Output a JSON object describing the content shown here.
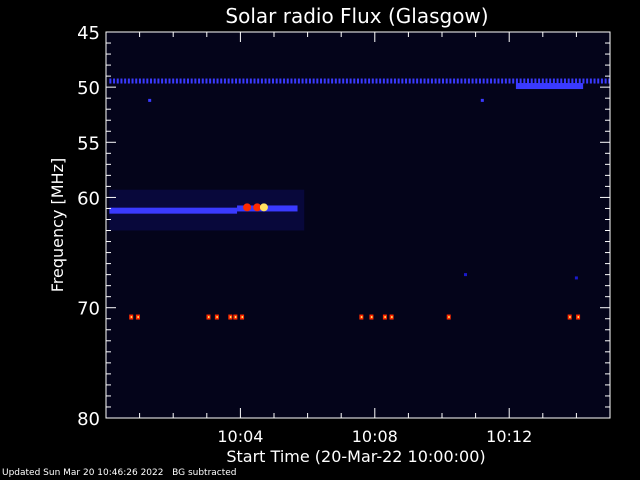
{
  "chart_data": {
    "type": "heatmap",
    "title": "Solar radio Flux (Glasgow)",
    "xlabel": "Start Time (20-Mar-22 10:00:00)",
    "ylabel": "Frequency [MHz]",
    "x_unit": "minutes after 10:00:00",
    "xlim": [
      0,
      15
    ],
    "ylim": [
      80,
      45
    ],
    "y_ticks": [
      {
        "value": 45,
        "label": "45"
      },
      {
        "value": 50,
        "label": "50"
      },
      {
        "value": 55,
        "label": "55"
      },
      {
        "value": 60,
        "label": "60"
      },
      {
        "value": 70,
        "label": "70"
      },
      {
        "value": 80,
        "label": "80"
      }
    ],
    "x_ticks": [
      {
        "value": 4,
        "label": "10:04"
      },
      {
        "value": 8,
        "label": "10:08"
      },
      {
        "value": 12,
        "label": "10:12"
      }
    ],
    "background_color": "#04041a",
    "colors": {
      "weak": "#1a1acc",
      "medium": "#3a3aff",
      "strong": "#ff2a00",
      "peak": "#ffe060"
    },
    "features": [
      {
        "kind": "dotted_line",
        "freq": 49.4,
        "t_start": 0.1,
        "t_end": 15,
        "intensity": "medium"
      },
      {
        "kind": "band",
        "freq": 61.2,
        "t_start": 0.1,
        "t_end": 3.9,
        "intensity": "medium"
      },
      {
        "kind": "band",
        "freq": 61.0,
        "t_start": 3.9,
        "t_end": 5.7,
        "intensity": "medium"
      },
      {
        "kind": "band",
        "freq": 49.9,
        "t_start": 12.2,
        "t_end": 14.2,
        "intensity": "medium"
      },
      {
        "kind": "hotspot",
        "freq": 60.9,
        "t": 4.5,
        "intensity": "strong"
      },
      {
        "kind": "hotspot",
        "freq": 60.9,
        "t": 4.7,
        "intensity": "peak"
      },
      {
        "kind": "hotspot",
        "freq": 60.9,
        "t": 4.2,
        "intensity": "strong"
      },
      {
        "kind": "spot",
        "freq": 51.2,
        "t": 1.3,
        "intensity": "medium"
      },
      {
        "kind": "spot",
        "freq": 51.2,
        "t": 11.2,
        "intensity": "medium"
      },
      {
        "kind": "spot",
        "freq": 67.3,
        "t": 14.0,
        "intensity": "weak"
      },
      {
        "kind": "spot",
        "freq": 67.0,
        "t": 10.7,
        "intensity": "weak"
      }
    ],
    "interference_line": {
      "freq": 70.8,
      "times": [
        0.75,
        0.95,
        3.05,
        3.3,
        3.7,
        3.85,
        4.05,
        7.6,
        7.9,
        8.3,
        8.5,
        10.2,
        13.8,
        14.05
      ],
      "intensity": "strong"
    }
  },
  "footer": {
    "updated": "Updated Sun Mar 20 10:46:26 2022",
    "note": "BG subtracted"
  }
}
